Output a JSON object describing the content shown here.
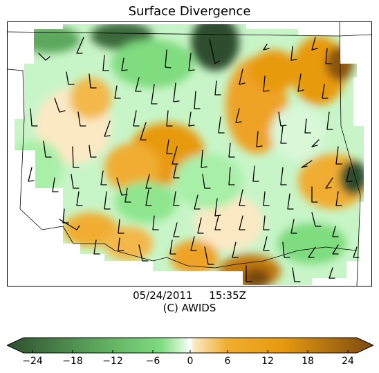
{
  "title": "Surface Divergence",
  "footer": {
    "date": "05/24/2011",
    "time": "15:35Z",
    "credit": "(C) AWIDS"
  },
  "colorbar": {
    "ticks": [
      "−24",
      "−18",
      "−12",
      "−6",
      "0",
      "6",
      "12",
      "18",
      "24"
    ],
    "range": [
      -26,
      26
    ],
    "negative_color": "#2e4e2e",
    "positive_color": "#7a4a10",
    "zero_color": "#ffffff"
  }
}
